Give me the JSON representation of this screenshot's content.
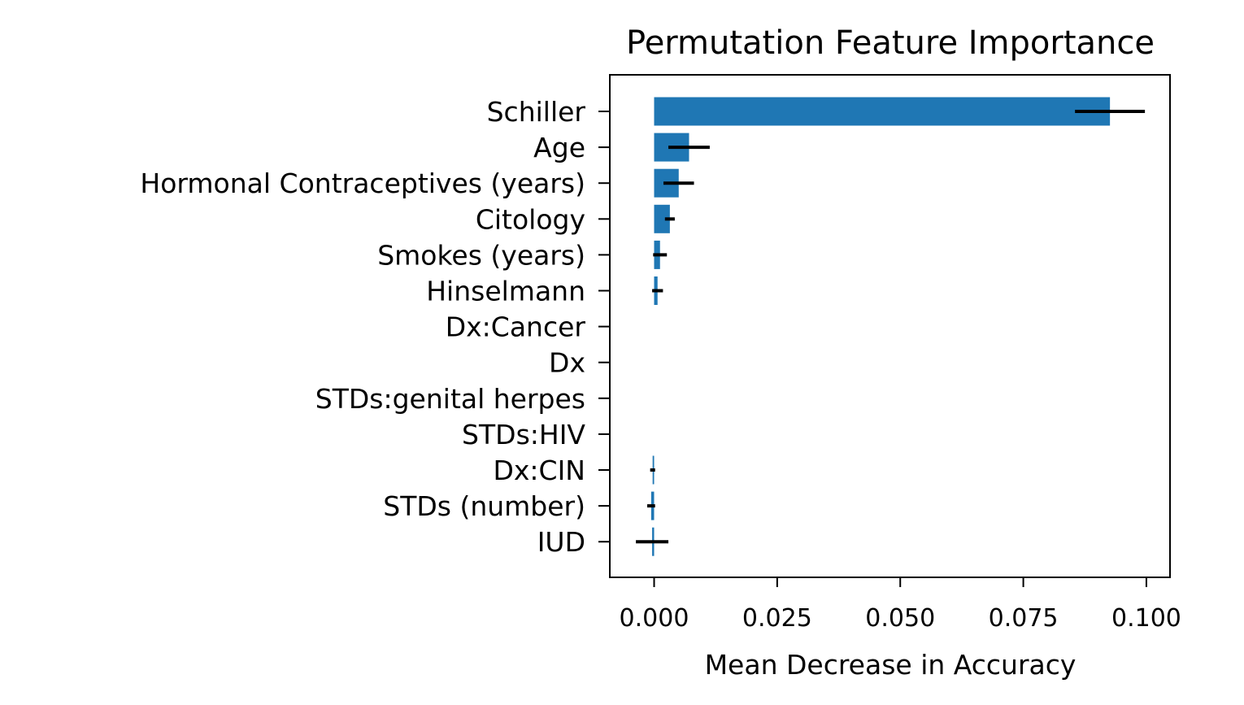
{
  "chart_data": {
    "type": "bar",
    "orientation": "horizontal",
    "title": "Permutation Feature Importance",
    "xlabel": "Mean Decrease in Accuracy",
    "ylabel": "",
    "xlim": [
      -0.009,
      0.1048
    ],
    "xticks": [
      0.0,
      0.025,
      0.05,
      0.075,
      0.1
    ],
    "xtick_labels": [
      "0.000",
      "0.025",
      "0.050",
      "0.075",
      "0.100"
    ],
    "categories": [
      "Schiller",
      "Age",
      "Hormonal Contraceptives (years)",
      "Citology",
      "Smokes (years)",
      "Hinselmann",
      "Dx:Cancer",
      "Dx",
      "STDs:genital herpes",
      "STDs:HIV",
      "Dx:CIN",
      "STDs (number)",
      "IUD"
    ],
    "values": [
      0.0926,
      0.0071,
      0.005,
      0.0032,
      0.0012,
      0.0007,
      0.0,
      0.0,
      0.0,
      0.0,
      -0.0003,
      -0.0006,
      -0.0004
    ],
    "errors": [
      0.0071,
      0.0042,
      0.0031,
      0.001,
      0.0014,
      0.0011,
      0.0,
      0.0,
      0.0,
      0.0,
      0.0005,
      0.0008,
      0.0033
    ],
    "grid": false,
    "bar_color": "#1f77b4",
    "error_color": "#000000"
  }
}
